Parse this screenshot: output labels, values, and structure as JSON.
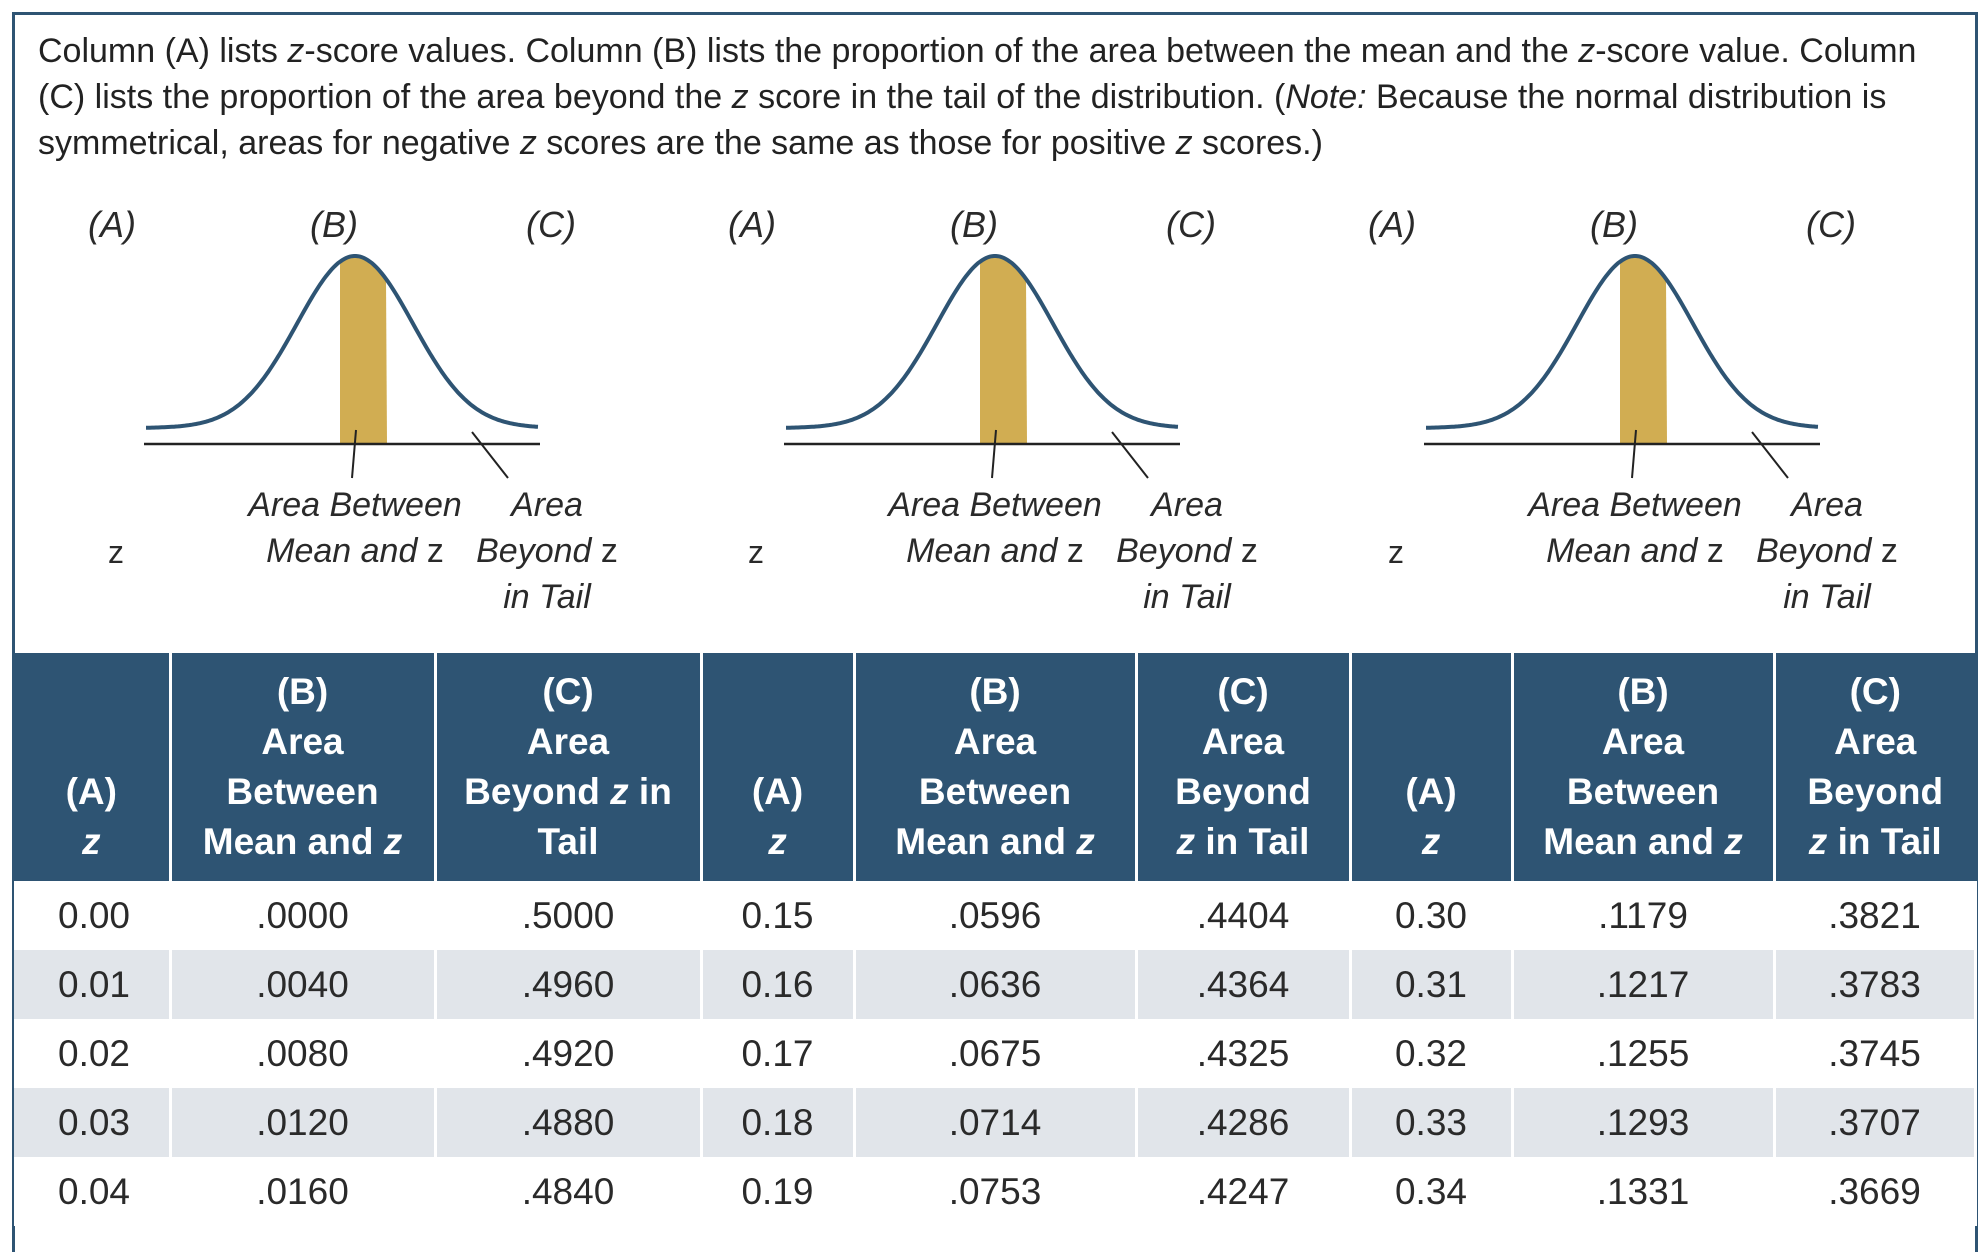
{
  "intro": {
    "part1": "Column (A) lists ",
    "z1": "z",
    "part2": "-score values. Column (B) lists the proportion of the area between the mean and the ",
    "z2": "z",
    "part3": "-score value. Column (C) lists the proportion of the area beyond the ",
    "z3": "z",
    "part4": " score in the tail of the distribution. (",
    "note": "Note:",
    "part5": " Because the normal distribution is symmetrical, areas for negative ",
    "z4": "z",
    "part6": " scores are the same as those for positive ",
    "z5": "z",
    "part7": " scores.)"
  },
  "figure": {
    "col_a": "(A)",
    "col_b": "(B)",
    "col_c": "(C)",
    "z_label": "z",
    "between_line1": "Area Between",
    "between_line2": "Mean and",
    "between_z": "z",
    "beyond_line1": "Area",
    "beyond_line2": "Beyond",
    "beyond_z": "z",
    "beyond_line3": "in Tail",
    "shade_color": "#d1ad52",
    "curve_color": "#2e5473"
  },
  "headers": {
    "a_line1": "(A)",
    "a_line2": "z",
    "b_line1": "(B)",
    "b_line2": "Area",
    "b_line3": "Between",
    "b_line4": "Mean and",
    "b_z": "z",
    "c1_line1": "(C)",
    "c1_line2": "Area",
    "c1_line3": "Beyond",
    "c1_z": "z",
    "c1_line3b": "in",
    "c1_line4": "Tail",
    "c_line1": "(C)",
    "c_line2": "Area",
    "c_line3": "Beyond",
    "c_z": "z",
    "c_line4": "in Tail"
  },
  "rows": [
    [
      "0.00",
      ".0000",
      ".5000",
      "0.15",
      ".0596",
      ".4404",
      "0.30",
      ".1179",
      ".3821"
    ],
    [
      "0.01",
      ".0040",
      ".4960",
      "0.16",
      ".0636",
      ".4364",
      "0.31",
      ".1217",
      ".3783"
    ],
    [
      "0.02",
      ".0080",
      ".4920",
      "0.17",
      ".0675",
      ".4325",
      "0.32",
      ".1255",
      ".3745"
    ],
    [
      "0.03",
      ".0120",
      ".4880",
      "0.18",
      ".0714",
      ".4286",
      "0.33",
      ".1293",
      ".3707"
    ],
    [
      "0.04",
      ".0160",
      ".4840",
      "0.19",
      ".0753",
      ".4247",
      "0.34",
      ".1331",
      ".3669"
    ]
  ],
  "colors": {
    "header_bg": "#2e5473",
    "stripe": "#e1e5ea"
  }
}
